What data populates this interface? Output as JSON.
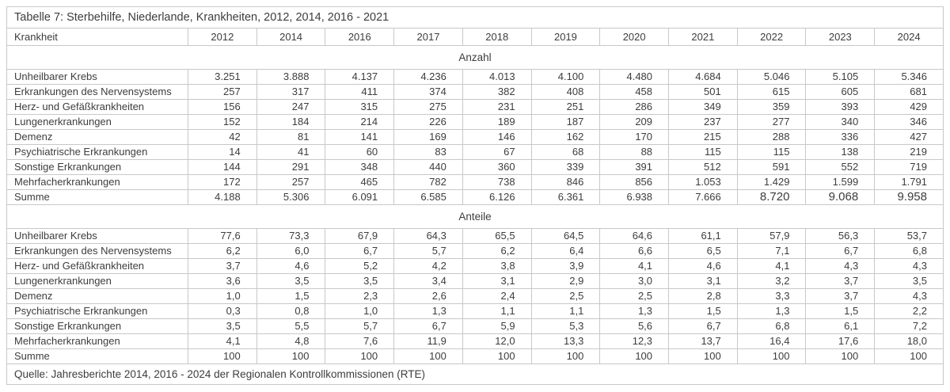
{
  "title": "Tabelle 7: Sterbehilfe, Niederlande, Krankheiten, 2012, 2014, 2016 - 2021",
  "header": {
    "row_label": "Krankheit",
    "years": [
      "2012",
      "2014",
      "2016",
      "2017",
      "2018",
      "2019",
      "2020",
      "2021",
      "2022",
      "2023",
      "2024"
    ]
  },
  "sections": [
    {
      "label": "Anzahl",
      "rows": [
        {
          "label": "Unheilbarer Krebs",
          "values": [
            "3.251",
            "3.888",
            "4.137",
            "4.236",
            "4.013",
            "4.100",
            "4.480",
            "4.684",
            "5.046",
            "5.105",
            "5.346"
          ]
        },
        {
          "label": "Erkrankungen des Nervensystems",
          "values": [
            "257",
            "317",
            "411",
            "374",
            "382",
            "408",
            "458",
            "501",
            "615",
            "605",
            "681"
          ]
        },
        {
          "label": "Herz- und Gefäßkrankheiten",
          "values": [
            "156",
            "247",
            "315",
            "275",
            "231",
            "251",
            "286",
            "349",
            "359",
            "393",
            "429"
          ]
        },
        {
          "label": "Lungenerkrankungen",
          "values": [
            "152",
            "184",
            "214",
            "226",
            "189",
            "187",
            "209",
            "237",
            "277",
            "340",
            "346"
          ]
        },
        {
          "label": "Demenz",
          "values": [
            "42",
            "81",
            "141",
            "169",
            "146",
            "162",
            "170",
            "215",
            "288",
            "336",
            "427"
          ]
        },
        {
          "label": "Psychiatrische Erkrankungen",
          "values": [
            "14",
            "41",
            "60",
            "83",
            "67",
            "68",
            "88",
            "115",
            "115",
            "138",
            "219"
          ]
        },
        {
          "label": "Sonstige Erkrankungen",
          "values": [
            "144",
            "291",
            "348",
            "440",
            "360",
            "339",
            "391",
            "512",
            "591",
            "552",
            "719"
          ]
        },
        {
          "label": "Mehrfacherkrankungen",
          "values": [
            "172",
            "257",
            "465",
            "782",
            "738",
            "846",
            "856",
            "1.053",
            "1.429",
            "1.599",
            "1.791"
          ]
        },
        {
          "label": "Summe",
          "values": [
            "4.188",
            "5.306",
            "6.091",
            "6.585",
            "6.126",
            "6.361",
            "6.938",
            "7.666",
            "8.720",
            "9.068",
            "9.958"
          ],
          "large_from_col": 8
        }
      ]
    },
    {
      "label": "Anteile",
      "rows": [
        {
          "label": "Unheilbarer Krebs",
          "values": [
            "77,6",
            "73,3",
            "67,9",
            "64,3",
            "65,5",
            "64,5",
            "64,6",
            "61,1",
            "57,9",
            "56,3",
            "53,7"
          ]
        },
        {
          "label": "Erkrankungen des Nervensystems",
          "values": [
            "6,2",
            "6,0",
            "6,7",
            "5,7",
            "6,2",
            "6,4",
            "6,6",
            "6,5",
            "7,1",
            "6,7",
            "6,8"
          ]
        },
        {
          "label": "Herz- und Gefäßkrankheiten",
          "values": [
            "3,7",
            "4,6",
            "5,2",
            "4,2",
            "3,8",
            "3,9",
            "4,1",
            "4,6",
            "4,1",
            "4,3",
            "4,3"
          ]
        },
        {
          "label": "Lungenerkrankungen",
          "values": [
            "3,6",
            "3,5",
            "3,5",
            "3,4",
            "3,1",
            "2,9",
            "3,0",
            "3,1",
            "3,2",
            "3,7",
            "3,5"
          ]
        },
        {
          "label": "Demenz",
          "values": [
            "1,0",
            "1,5",
            "2,3",
            "2,6",
            "2,4",
            "2,5",
            "2,5",
            "2,8",
            "3,3",
            "3,7",
            "4,3"
          ]
        },
        {
          "label": "Psychiatrische Erkrankungen",
          "values": [
            "0,3",
            "0,8",
            "1,0",
            "1,3",
            "1,1",
            "1,1",
            "1,3",
            "1,5",
            "1,3",
            "1,5",
            "2,2"
          ]
        },
        {
          "label": "Sonstige Erkrankungen",
          "values": [
            "3,5",
            "5,5",
            "5,7",
            "6,7",
            "5,9",
            "5,3",
            "5,6",
            "6,7",
            "6,8",
            "6,1",
            "7,2"
          ]
        },
        {
          "label": "Mehrfacherkrankungen",
          "values": [
            "4,1",
            "4,8",
            "7,6",
            "11,9",
            "12,0",
            "13,3",
            "12,3",
            "13,7",
            "16,4",
            "17,6",
            "18,0"
          ]
        },
        {
          "label": "Summe",
          "values": [
            "100",
            "100",
            "100",
            "100",
            "100",
            "100",
            "100",
            "100",
            "100",
            "100",
            "100"
          ]
        }
      ]
    }
  ],
  "source": "Quelle: Jahresberichte 2014, 2016 - 2024 der Regionalen Kontrollkommissionen (RTE)",
  "colors": {
    "border": "#c8c8c8",
    "text": "#3d3d3d",
    "background": "#ffffff"
  }
}
